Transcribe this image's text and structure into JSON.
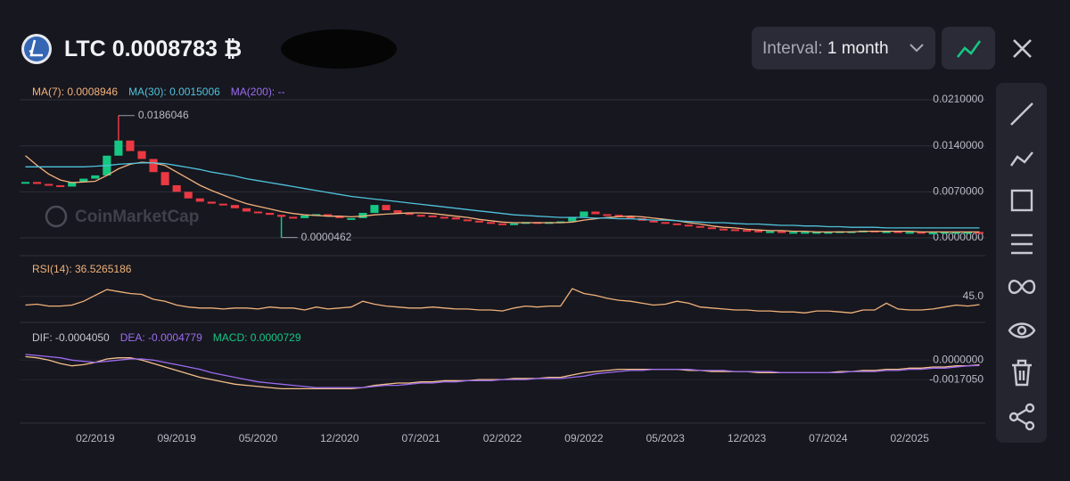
{
  "header": {
    "symbol": "LTC",
    "price": "0.0008783",
    "unit": "₿",
    "interval_label": "Interval:",
    "interval": "1 month"
  },
  "chart_data": [
    {
      "type": "candle",
      "watermark": "CoinMarketCap",
      "up_color": "#16c784",
      "down_color": "#ea3943",
      "grid": true,
      "categories": [
        null,
        null,
        null,
        null,
        null,
        null,
        "02/2019",
        null,
        null,
        null,
        null,
        null,
        null,
        "09/2019",
        null,
        null,
        null,
        null,
        null,
        null,
        "05/2020",
        null,
        null,
        null,
        null,
        null,
        null,
        "12/2020",
        null,
        null,
        null,
        null,
        null,
        null,
        "07/2021",
        null,
        null,
        null,
        null,
        null,
        null,
        "02/2022",
        null,
        null,
        null,
        null,
        null,
        null,
        "09/2022",
        null,
        null,
        null,
        null,
        null,
        null,
        "05/2023",
        null,
        null,
        null,
        null,
        null,
        null,
        "12/2023",
        null,
        null,
        null,
        null,
        null,
        null,
        "07/2024",
        null,
        null,
        null,
        null,
        null,
        null,
        "02/2025",
        null,
        null,
        null,
        null,
        null,
        null
      ],
      "values": [
        0.0085,
        0.0082,
        0.008,
        0.0078,
        0.0085,
        0.009,
        0.0095,
        0.0125,
        0.0148,
        0.0132,
        0.012,
        0.01,
        0.008,
        0.007,
        0.006,
        0.0055,
        0.0052,
        0.005,
        0.0045,
        0.004,
        0.0038,
        0.0035,
        0.0032,
        0.003,
        0.0034,
        0.0036,
        0.0033,
        0.003,
        0.003,
        0.0038,
        0.005,
        0.0042,
        0.0038,
        0.0035,
        0.0034,
        0.0032,
        0.0031,
        0.0028,
        0.0026,
        0.0024,
        0.0022,
        0.002,
        0.0022,
        0.0024,
        0.0023,
        0.0024,
        0.0025,
        0.0032,
        0.004,
        0.0036,
        0.0035,
        0.0032,
        0.003,
        0.0026,
        0.0024,
        0.0022,
        0.002,
        0.0018,
        0.0016,
        0.0014,
        0.0013,
        0.0012,
        0.0011,
        0.001,
        0.001,
        0.0009,
        0.0009,
        0.0009,
        0.0009,
        0.0009,
        0.001,
        0.001,
        0.0011,
        0.001,
        0.001,
        0.0009,
        0.0009,
        0.0008,
        0.0008,
        0.0009,
        0.0009,
        0.0009,
        0.0008783
      ],
      "series": [
        {
          "name": "MA(7): 0.0008946",
          "color": "#f5b27c",
          "values": [
            0.0125,
            0.011,
            0.0097,
            0.0088,
            0.0084,
            0.0085,
            0.0086,
            0.0095,
            0.0105,
            0.0112,
            0.0115,
            0.0114,
            0.011,
            0.01,
            0.009,
            0.008,
            0.0072,
            0.0065,
            0.0058,
            0.0052,
            0.0048,
            0.0044,
            0.004,
            0.0037,
            0.0035,
            0.0034,
            0.0033,
            0.0033,
            0.0032,
            0.0033,
            0.0035,
            0.0036,
            0.0037,
            0.0038,
            0.0038,
            0.0037,
            0.0035,
            0.0033,
            0.0031,
            0.0028,
            0.0026,
            0.0024,
            0.0023,
            0.0023,
            0.0023,
            0.0023,
            0.0023,
            0.0024,
            0.0027,
            0.0029,
            0.0031,
            0.0032,
            0.0033,
            0.0032,
            0.003,
            0.0028,
            0.0026,
            0.0023,
            0.0021,
            0.0018,
            0.0016,
            0.0015,
            0.0013,
            0.0012,
            0.0011,
            0.0011,
            0.001,
            0.001,
            0.0009,
            0.0009,
            0.0009,
            0.0009,
            0.001,
            0.001,
            0.001,
            0.001,
            0.001,
            0.0009,
            0.0009,
            0.0009,
            0.0009,
            0.0009,
            0.0009
          ]
        },
        {
          "name": "MA(30): 0.0015006",
          "color": "#4fc3dc",
          "values": [
            0.0108,
            0.0108,
            0.0108,
            0.0108,
            0.0108,
            0.0108,
            0.0109,
            0.011,
            0.0112,
            0.0113,
            0.0114,
            0.0114,
            0.0113,
            0.011,
            0.0107,
            0.0104,
            0.01,
            0.0097,
            0.0094,
            0.009,
            0.0087,
            0.0084,
            0.0081,
            0.0078,
            0.0075,
            0.0072,
            0.0069,
            0.0066,
            0.0063,
            0.0061,
            0.0059,
            0.0057,
            0.0055,
            0.0053,
            0.0051,
            0.0049,
            0.0047,
            0.0045,
            0.0043,
            0.0041,
            0.0039,
            0.0037,
            0.0035,
            0.0034,
            0.0033,
            0.0032,
            0.0031,
            0.0031,
            0.0031,
            0.003,
            0.003,
            0.0029,
            0.0029,
            0.0028,
            0.0027,
            0.0027,
            0.0026,
            0.0025,
            0.0024,
            0.0023,
            0.0023,
            0.0022,
            0.0021,
            0.0021,
            0.002,
            0.0019,
            0.0019,
            0.0018,
            0.0018,
            0.0017,
            0.0017,
            0.0016,
            0.0016,
            0.0016,
            0.0015,
            0.0015,
            0.0015,
            0.0015,
            0.0015,
            0.0015,
            0.0015,
            0.0015,
            0.0015
          ]
        }
      ],
      "extra_legend": {
        "text": "MA(200): --",
        "color": "#9b6cf0"
      },
      "annotations": [
        {
          "value": 0.0186046,
          "label": "0.0186046"
        },
        {
          "value": 4.62e-05,
          "label": "0.0000462"
        }
      ],
      "ylim": [
        -0.00176,
        0.02263
      ],
      "yticks": [
        {
          "value": 0.021,
          "label": "0.0210000"
        },
        {
          "value": 0.014,
          "label": "0.0140000"
        },
        {
          "value": 0.007,
          "label": "0.0070000"
        },
        {
          "value": 0,
          "label": "0.0000000"
        }
      ]
    },
    {
      "type": "line",
      "series": [
        {
          "name": "RSI(14): 36.5265186",
          "color": "#f0b27a",
          "values": [
            36,
            37,
            35,
            35,
            36,
            40,
            46,
            52,
            50,
            48,
            47,
            42,
            40,
            36,
            34,
            33,
            33,
            32,
            33,
            33,
            32,
            34,
            33,
            33,
            31,
            34,
            32,
            33,
            34,
            40,
            37,
            35,
            34,
            33,
            33,
            34,
            33,
            32,
            32,
            31,
            31,
            30,
            33,
            35,
            34,
            35,
            35,
            53,
            48,
            46,
            43,
            41,
            40,
            38,
            36,
            37,
            40,
            38,
            34,
            33,
            32,
            31,
            31,
            30,
            30,
            29,
            29,
            28,
            30,
            30,
            29,
            28,
            31,
            31,
            38,
            32,
            31,
            31,
            32,
            34,
            36,
            35,
            36.5
          ]
        }
      ],
      "ylim": [
        20,
        75
      ],
      "yticks": [
        {
          "value": 45,
          "label": "45.0"
        }
      ]
    },
    {
      "type": "line",
      "series": [
        {
          "name": "DIF: -0.0004050",
          "color": "#f5c08a",
          "legend_color": "#c8c8d0",
          "values": [
            0.0003,
            0.0002,
            0,
            -0.0003,
            -0.0005,
            -0.0004,
            -0.0002,
            0.0001,
            0.0002,
            0.0002,
            0,
            -0.0003,
            -0.0006,
            -0.0009,
            -0.0012,
            -0.0015,
            -0.0017,
            -0.0019,
            -0.0021,
            -0.0022,
            -0.0023,
            -0.0024,
            -0.0025,
            -0.0025,
            -0.0025,
            -0.0025,
            -0.0025,
            -0.0025,
            -0.0025,
            -0.0024,
            -0.0022,
            -0.0021,
            -0.002,
            -0.002,
            -0.0019,
            -0.0019,
            -0.0018,
            -0.0018,
            -0.0018,
            -0.0017,
            -0.0017,
            -0.0017,
            -0.0016,
            -0.0016,
            -0.0016,
            -0.0015,
            -0.0015,
            -0.0013,
            -0.0011,
            -0.001,
            -0.0009,
            -0.0008,
            -0.0008,
            -0.0008,
            -0.0008,
            -0.0008,
            -0.0008,
            -0.0009,
            -0.0009,
            -0.001,
            -0.001,
            -0.001,
            -0.001,
            -0.0011,
            -0.0011,
            -0.0011,
            -0.0011,
            -0.0011,
            -0.0011,
            -0.0011,
            -0.001,
            -0.001,
            -0.0009,
            -0.0009,
            -0.0008,
            -0.0008,
            -0.0007,
            -0.0007,
            -0.0006,
            -0.0006,
            -0.0005,
            -0.0005,
            -0.000405
          ]
        },
        {
          "name": "DEA: -0.0004779",
          "color": "#9b6cf0",
          "legend_color": "#9b6cf0",
          "values": [
            0.0005,
            0.0004,
            0.0003,
            0.0002,
            0,
            -0.0001,
            -0.0002,
            -0.0001,
            0,
            0.0001,
            0.0001,
            0,
            -0.0002,
            -0.0004,
            -0.0006,
            -0.0008,
            -0.0011,
            -0.0013,
            -0.0015,
            -0.0017,
            -0.0019,
            -0.002,
            -0.0021,
            -0.0022,
            -0.0023,
            -0.0024,
            -0.0024,
            -0.0024,
            -0.0024,
            -0.0024,
            -0.0023,
            -0.0022,
            -0.0022,
            -0.0021,
            -0.002,
            -0.002,
            -0.0019,
            -0.0019,
            -0.0018,
            -0.0018,
            -0.0018,
            -0.0017,
            -0.0017,
            -0.0017,
            -0.0016,
            -0.0016,
            -0.0016,
            -0.0015,
            -0.0014,
            -0.0012,
            -0.0011,
            -0.001,
            -0.0009,
            -0.0009,
            -0.0008,
            -0.0008,
            -0.0008,
            -0.0008,
            -0.0009,
            -0.0009,
            -0.0009,
            -0.001,
            -0.001,
            -0.001,
            -0.001,
            -0.0011,
            -0.0011,
            -0.0011,
            -0.0011,
            -0.0011,
            -0.0011,
            -0.001,
            -0.001,
            -0.001,
            -0.0009,
            -0.0009,
            -0.0008,
            -0.0008,
            -0.0007,
            -0.0007,
            -0.0006,
            -0.0005,
            -0.000478
          ]
        }
      ],
      "extra_legend": {
        "text": "MACD: 0.0000729",
        "color": "#16c784"
      },
      "ylim": [
        -0.0055,
        0.0015
      ],
      "yticks": [
        {
          "value": 0,
          "label": "0.0000000"
        },
        {
          "value": -0.001705,
          "label": "-0.0017050"
        }
      ]
    }
  ]
}
